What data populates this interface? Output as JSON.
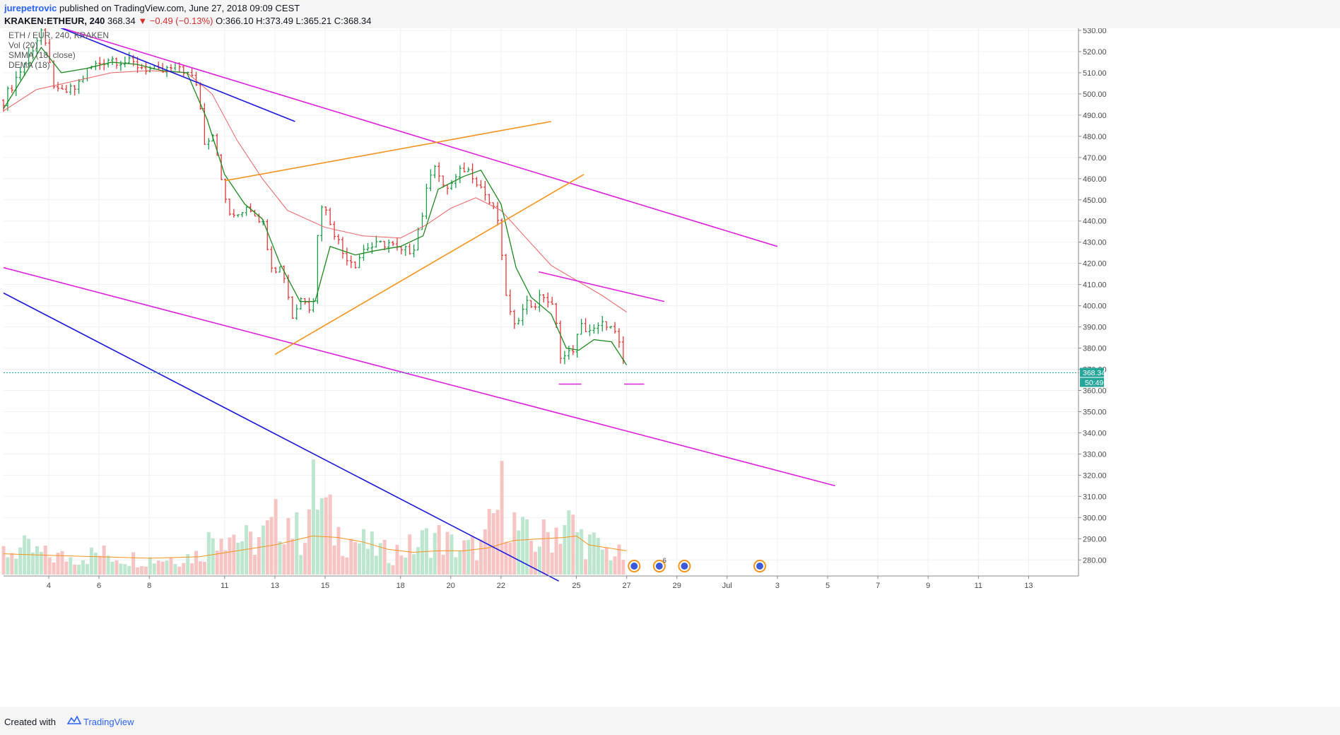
{
  "header": {
    "publisher": "jurepetrovic",
    "published_text": "published on TradingView.com, June 27, 2018 09:09 CEST",
    "symbol": "KRAKEN:ETHEUR, 240",
    "last": "368.34",
    "change": "▼ −0.49 (−0.13%)",
    "ohlc": "O:366.10 H:373.49 L:365.21 C:368.34"
  },
  "legend": {
    "title": "ETH / EUR, 240, KRAKEN",
    "vol": "Vol (20)",
    "smma": "SMMA (18, close)",
    "dema": "DEMA (18)"
  },
  "footer": {
    "created": "Created with",
    "brand": "TradingView"
  },
  "price_tag": {
    "price": "368.34",
    "countdown": "50:49"
  },
  "chart_data": {
    "type": "candlestick",
    "ylim": [
      270,
      533
    ],
    "y_ticks": [
      "530.00",
      "520.00",
      "510.00",
      "500.00",
      "490.00",
      "480.00",
      "470.00",
      "460.00",
      "450.00",
      "440.00",
      "430.00",
      "420.00",
      "410.00",
      "400.00",
      "390.00",
      "380.00",
      "370.00",
      "360.00",
      "350.00",
      "340.00",
      "330.00",
      "320.00",
      "310.00",
      "300.00",
      "290.00",
      "280.00"
    ],
    "x_ticks": [
      {
        "label": "4",
        "day": 4
      },
      {
        "label": "6",
        "day": 6
      },
      {
        "label": "8",
        "day": 8
      },
      {
        "label": "11",
        "day": 11
      },
      {
        "label": "13",
        "day": 13
      },
      {
        "label": "15",
        "day": 15
      },
      {
        "label": "18",
        "day": 18
      },
      {
        "label": "20",
        "day": 20
      },
      {
        "label": "22",
        "day": 22
      },
      {
        "label": "25",
        "day": 25
      },
      {
        "label": "27",
        "day": 27
      },
      {
        "label": "29",
        "day": 29
      },
      {
        "label": "Jul",
        "day": 31
      },
      {
        "label": "3",
        "day": 33
      },
      {
        "label": "5",
        "day": 35
      },
      {
        "label": "7",
        "day": 37
      },
      {
        "label": "9",
        "day": 39
      },
      {
        "label": "11",
        "day": 41
      },
      {
        "label": "13",
        "day": 43
      }
    ],
    "price_keypoints": [
      {
        "day": 2.2,
        "p": 497
      },
      {
        "day": 3.2,
        "p": 518
      },
      {
        "day": 3.7,
        "p": 530
      },
      {
        "day": 4.3,
        "p": 500
      },
      {
        "day": 5.0,
        "p": 502
      },
      {
        "day": 5.6,
        "p": 512
      },
      {
        "day": 6.4,
        "p": 517
      },
      {
        "day": 7.4,
        "p": 514
      },
      {
        "day": 8.4,
        "p": 510
      },
      {
        "day": 9.2,
        "p": 513
      },
      {
        "day": 9.9,
        "p": 505
      },
      {
        "day": 10.2,
        "p": 478
      },
      {
        "day": 10.6,
        "p": 482
      },
      {
        "day": 10.9,
        "p": 455
      },
      {
        "day": 11.3,
        "p": 440
      },
      {
        "day": 11.9,
        "p": 448
      },
      {
        "day": 12.5,
        "p": 440
      },
      {
        "day": 12.9,
        "p": 418
      },
      {
        "day": 13.3,
        "p": 418
      },
      {
        "day": 13.7,
        "p": 395
      },
      {
        "day": 14.1,
        "p": 405
      },
      {
        "day": 14.5,
        "p": 398
      },
      {
        "day": 14.8,
        "p": 450
      },
      {
        "day": 15.2,
        "p": 440
      },
      {
        "day": 15.7,
        "p": 425
      },
      {
        "day": 16.2,
        "p": 420
      },
      {
        "day": 16.6,
        "p": 428
      },
      {
        "day": 17.0,
        "p": 428
      },
      {
        "day": 17.5,
        "p": 430
      },
      {
        "day": 18.0,
        "p": 425
      },
      {
        "day": 18.5,
        "p": 427
      },
      {
        "day": 18.9,
        "p": 445
      },
      {
        "day": 19.3,
        "p": 470
      },
      {
        "day": 19.7,
        "p": 455
      },
      {
        "day": 20.1,
        "p": 458
      },
      {
        "day": 20.5,
        "p": 465
      },
      {
        "day": 20.9,
        "p": 462
      },
      {
        "day": 21.4,
        "p": 452
      },
      {
        "day": 21.9,
        "p": 440
      },
      {
        "day": 22.1,
        "p": 412
      },
      {
        "day": 22.5,
        "p": 388
      },
      {
        "day": 22.9,
        "p": 402
      },
      {
        "day": 23.3,
        "p": 400
      },
      {
        "day": 23.7,
        "p": 405
      },
      {
        "day": 24.1,
        "p": 398
      },
      {
        "day": 24.4,
        "p": 375
      },
      {
        "day": 24.8,
        "p": 378
      },
      {
        "day": 25.2,
        "p": 390
      },
      {
        "day": 25.7,
        "p": 388
      },
      {
        "day": 26.2,
        "p": 392
      },
      {
        "day": 26.6,
        "p": 385
      },
      {
        "day": 27.0,
        "p": 368
      }
    ],
    "volume_keypoints": [
      {
        "day": 2.2,
        "v": 16
      },
      {
        "day": 3.0,
        "v": 18
      },
      {
        "day": 4.0,
        "v": 13
      },
      {
        "day": 5.0,
        "v": 12
      },
      {
        "day": 6.0,
        "v": 15
      },
      {
        "day": 7.0,
        "v": 12
      },
      {
        "day": 8.0,
        "v": 11
      },
      {
        "day": 9.0,
        "v": 12
      },
      {
        "day": 10.0,
        "v": 14
      },
      {
        "day": 10.8,
        "v": 35
      },
      {
        "day": 12.0,
        "v": 22
      },
      {
        "day": 12.8,
        "v": 30
      },
      {
        "day": 13.4,
        "v": 45
      },
      {
        "day": 14.0,
        "v": 25
      },
      {
        "day": 14.6,
        "v": 60
      },
      {
        "day": 15.4,
        "v": 30
      },
      {
        "day": 16.5,
        "v": 22
      },
      {
        "day": 17.5,
        "v": 15
      },
      {
        "day": 18.6,
        "v": 20
      },
      {
        "day": 19.3,
        "v": 28
      },
      {
        "day": 20.3,
        "v": 18
      },
      {
        "day": 21.3,
        "v": 20
      },
      {
        "day": 22.1,
        "v": 58
      },
      {
        "day": 22.6,
        "v": 32
      },
      {
        "day": 23.3,
        "v": 22
      },
      {
        "day": 24.0,
        "v": 30
      },
      {
        "day": 24.6,
        "v": 38
      },
      {
        "day": 25.3,
        "v": 25
      },
      {
        "day": 26.0,
        "v": 18
      },
      {
        "day": 27.0,
        "v": 12
      }
    ],
    "smma_points": [
      {
        "day": 2.2,
        "p": 492
      },
      {
        "day": 3.5,
        "p": 502
      },
      {
        "day": 5.0,
        "p": 506
      },
      {
        "day": 6.5,
        "p": 510
      },
      {
        "day": 8.0,
        "p": 511
      },
      {
        "day": 9.5,
        "p": 510
      },
      {
        "day": 10.5,
        "p": 500
      },
      {
        "day": 11.5,
        "p": 478
      },
      {
        "day": 12.5,
        "p": 460
      },
      {
        "day": 13.5,
        "p": 445
      },
      {
        "day": 15.0,
        "p": 437
      },
      {
        "day": 16.5,
        "p": 433
      },
      {
        "day": 18.0,
        "p": 432
      },
      {
        "day": 19.0,
        "p": 438
      },
      {
        "day": 20.0,
        "p": 446
      },
      {
        "day": 21.0,
        "p": 451
      },
      {
        "day": 22.0,
        "p": 445
      },
      {
        "day": 23.0,
        "p": 432
      },
      {
        "day": 24.0,
        "p": 419
      },
      {
        "day": 25.0,
        "p": 412
      },
      {
        "day": 26.0,
        "p": 405
      },
      {
        "day": 27.0,
        "p": 397
      }
    ],
    "dema_points": [
      {
        "day": 2.2,
        "p": 493
      },
      {
        "day": 3.2,
        "p": 512
      },
      {
        "day": 3.7,
        "p": 522
      },
      {
        "day": 4.5,
        "p": 510
      },
      {
        "day": 5.5,
        "p": 512
      },
      {
        "day": 6.5,
        "p": 515
      },
      {
        "day": 7.5,
        "p": 514
      },
      {
        "day": 8.5,
        "p": 511
      },
      {
        "day": 9.5,
        "p": 510
      },
      {
        "day": 10.3,
        "p": 488
      },
      {
        "day": 11.0,
        "p": 462
      },
      {
        "day": 11.8,
        "p": 448
      },
      {
        "day": 12.5,
        "p": 441
      },
      {
        "day": 13.2,
        "p": 420
      },
      {
        "day": 14.0,
        "p": 402
      },
      {
        "day": 14.6,
        "p": 402
      },
      {
        "day": 15.2,
        "p": 428
      },
      {
        "day": 16.2,
        "p": 424
      },
      {
        "day": 17.0,
        "p": 426
      },
      {
        "day": 18.0,
        "p": 428
      },
      {
        "day": 18.9,
        "p": 433
      },
      {
        "day": 19.5,
        "p": 455
      },
      {
        "day": 20.5,
        "p": 461
      },
      {
        "day": 21.2,
        "p": 464
      },
      {
        "day": 22.0,
        "p": 448
      },
      {
        "day": 22.6,
        "p": 418
      },
      {
        "day": 23.2,
        "p": 404
      },
      {
        "day": 24.0,
        "p": 396
      },
      {
        "day": 24.6,
        "p": 380
      },
      {
        "day": 25.1,
        "p": 379
      },
      {
        "day": 25.7,
        "p": 384
      },
      {
        "day": 26.4,
        "p": 383
      },
      {
        "day": 27.0,
        "p": 372
      }
    ],
    "vol_ma_points": [
      {
        "day": 2.2,
        "v": 14
      },
      {
        "day": 4.0,
        "v": 13
      },
      {
        "day": 6.0,
        "v": 12
      },
      {
        "day": 8.0,
        "v": 11
      },
      {
        "day": 10.0,
        "v": 12
      },
      {
        "day": 11.5,
        "v": 16
      },
      {
        "day": 13.0,
        "v": 20
      },
      {
        "day": 14.5,
        "v": 26
      },
      {
        "day": 15.5,
        "v": 25
      },
      {
        "day": 16.5,
        "v": 22
      },
      {
        "day": 17.5,
        "v": 17
      },
      {
        "day": 18.5,
        "v": 15
      },
      {
        "day": 19.5,
        "v": 16
      },
      {
        "day": 20.5,
        "v": 16
      },
      {
        "day": 21.5,
        "v": 18
      },
      {
        "day": 22.5,
        "v": 23
      },
      {
        "day": 23.5,
        "v": 24
      },
      {
        "day": 24.5,
        "v": 25
      },
      {
        "day": 25.0,
        "v": 26
      },
      {
        "day": 25.5,
        "v": 20
      },
      {
        "day": 27.0,
        "v": 16
      }
    ],
    "trendlines": [
      {
        "name": "upper-channel-line",
        "color": "#e020e0",
        "x1": 4.0,
        "y1": 533,
        "x2": 33.0,
        "y2": 428
      },
      {
        "name": "lower-channel-line",
        "color": "#e020e0",
        "x1": 2.2,
        "y1": 418,
        "x2": 35.3,
        "y2": 315
      },
      {
        "name": "short-resistance-line",
        "color": "#e020e0",
        "x1": 23.5,
        "y1": 416,
        "x2": 28.5,
        "y2": 402
      },
      {
        "name": "support-tick-1",
        "color": "#e020e0",
        "x1": 24.3,
        "y1": 363,
        "x2": 25.2,
        "y2": 363
      },
      {
        "name": "support-tick-2",
        "color": "#e020e0",
        "x1": 26.9,
        "y1": 363,
        "x2": 27.7,
        "y2": 363
      },
      {
        "name": "wedge-upper-line",
        "color": "#f7931a",
        "x1": 11.0,
        "y1": 459,
        "x2": 24.0,
        "y2": 487
      },
      {
        "name": "wedge-lower-line",
        "color": "#f7931a",
        "x1": 13.0,
        "y1": 377,
        "x2": 25.3,
        "y2": 462
      },
      {
        "name": "short-blue-line",
        "color": "#1a1adf",
        "x1": 4.3,
        "y1": 532,
        "x2": 13.8,
        "y2": 487
      },
      {
        "name": "long-blue-line",
        "color": "#1a1adf",
        "x1": 2.2,
        "y1": 406,
        "x2": 24.3,
        "y2": 270
      }
    ],
    "event_icons": [
      {
        "name": "event-icon-1",
        "day": 27.3,
        "badge": ""
      },
      {
        "name": "event-icon-2",
        "day": 28.3,
        "badge": "6"
      },
      {
        "name": "event-icon-3",
        "day": 29.3,
        "badge": ""
      },
      {
        "name": "event-icon-4",
        "day": 32.3,
        "badge": ""
      }
    ]
  }
}
